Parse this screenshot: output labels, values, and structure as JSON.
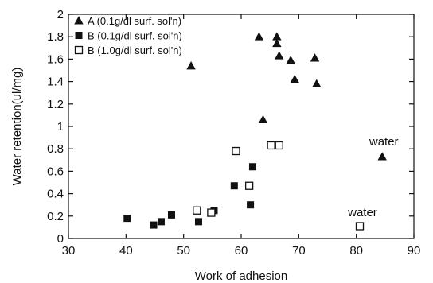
{
  "chart_data": {
    "type": "scatter",
    "xlabel": "Work of adhesion",
    "ylabel": "Water retention(ul/mg)",
    "xlim": [
      30,
      90
    ],
    "ylim": [
      0,
      2
    ],
    "x_ticks": [
      "30",
      "40",
      "50",
      "60",
      "70",
      "80",
      "90"
    ],
    "y_ticks": [
      "0",
      "0.2",
      "0.4",
      "0.6",
      "0.8",
      "1",
      "1.2",
      "1.4",
      "1.6",
      "1.8",
      "2"
    ],
    "legend_position": "top-left",
    "grid": false,
    "series": [
      {
        "name": "A (0.1g/dl surf. sol'n)",
        "marker": "filled-triangle",
        "x": [
          51.3,
          63.1,
          63.8,
          66.2,
          66.2,
          66.6,
          68.6,
          69.3,
          72.8,
          73.1,
          84.5
        ],
        "y": [
          1.54,
          1.8,
          1.06,
          1.8,
          1.74,
          1.63,
          1.59,
          1.42,
          1.61,
          1.38,
          0.73
        ]
      },
      {
        "name": "B (0.1g/dl surf. sol'n)",
        "marker": "filled-square",
        "x": [
          40.2,
          44.8,
          46.1,
          47.9,
          52.6,
          55.3,
          58.8,
          61.6,
          62.0
        ],
        "y": [
          0.18,
          0.12,
          0.15,
          0.21,
          0.15,
          0.25,
          0.47,
          0.3,
          0.64
        ]
      },
      {
        "name": "B (1.0g/dl surf. sol'n)",
        "marker": "open-square",
        "x": [
          52.3,
          54.8,
          59.1,
          61.4,
          65.2,
          66.6,
          80.6
        ],
        "y": [
          0.25,
          0.23,
          0.78,
          0.47,
          0.83,
          0.83,
          0.11
        ]
      }
    ],
    "annotations": [
      {
        "text": "water",
        "x": 84.5,
        "y": 0.83
      },
      {
        "text": "water",
        "x": 80.8,
        "y": 0.2
      }
    ]
  }
}
